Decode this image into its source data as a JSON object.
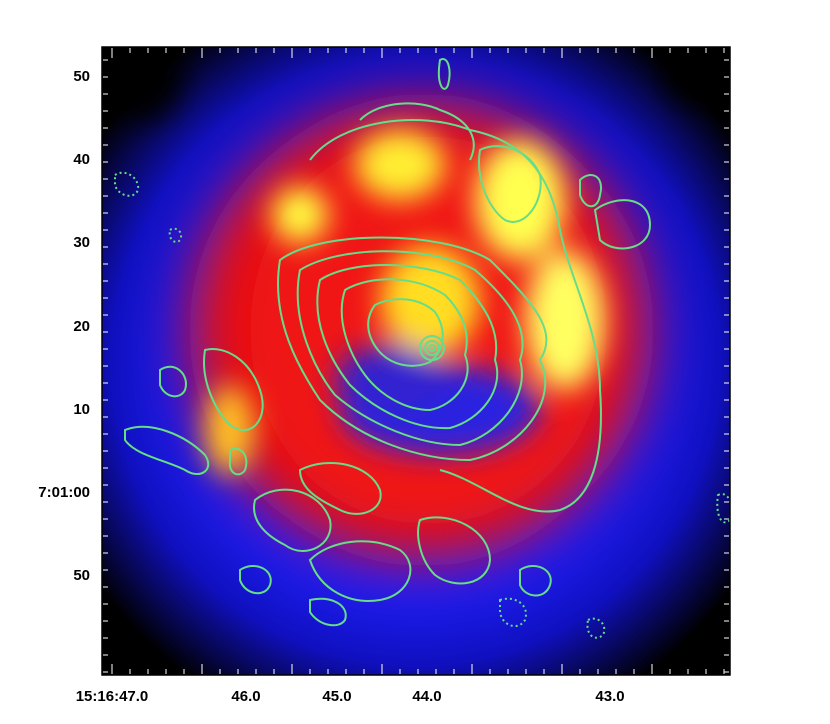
{
  "y_axis": {
    "labels": [
      "50",
      "40",
      "30",
      "20",
      "10",
      "7:01:00",
      "50"
    ]
  },
  "x_axis": {
    "labels": [
      "15:16:47.0",
      "46.0",
      "45.0",
      "44.0",
      "43.0"
    ]
  }
}
